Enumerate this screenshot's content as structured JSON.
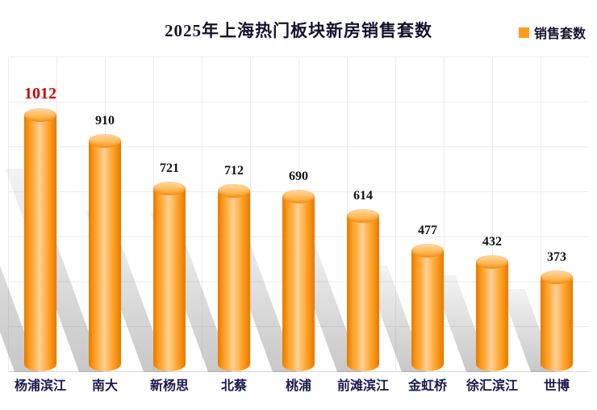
{
  "title": "2025年上海热门板块新房销售套数",
  "legend": {
    "label": "销售套数"
  },
  "colors": {
    "bar_main": "#ff9d1f",
    "bar_edge": "#e67a00",
    "bar_highlight": "#ffd093",
    "value_text": "#111111",
    "value_highlight": "#d40000",
    "category_text": "#1a1a4e",
    "grid_line": "#ececec"
  },
  "chart_data": {
    "type": "bar",
    "title": "2025年上海热门板块新房销售套数",
    "series_name": "销售套数",
    "categories": [
      "杨浦滨江",
      "南大",
      "新杨思",
      "北蔡",
      "桃浦",
      "前滩滨江",
      "金虹桥",
      "徐汇滨江",
      "世博"
    ],
    "values": [
      1012,
      910,
      721,
      712,
      690,
      614,
      477,
      432,
      373
    ],
    "highlight_index": 0,
    "xlabel": "",
    "ylabel": "",
    "ylim": [
      0,
      1012
    ],
    "grid": true,
    "legend_position": "top-right",
    "bar_style": "cylinder-3d-orange"
  }
}
